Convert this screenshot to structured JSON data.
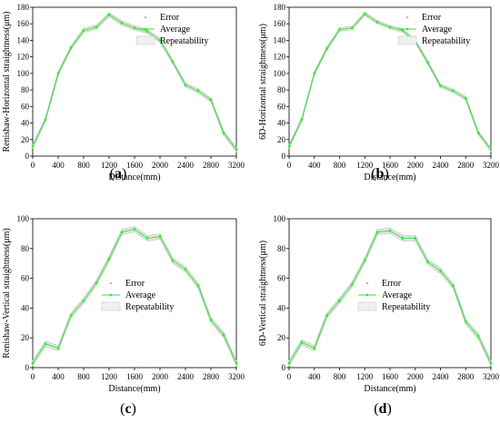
{
  "legend": {
    "error": "Error",
    "average": "Average",
    "repeatability": "Repeatability"
  },
  "colors": {
    "average": "#39e639",
    "band": "#cccccc",
    "error_marker": "#a8f0a8"
  },
  "chart_data": [
    {
      "type": "line",
      "panel": "(a)",
      "label_letter": "a",
      "xlabel": "Distance(mm)",
      "ylabel": "Renishaw-Horizontal straightness(μm)",
      "xlim": [
        0,
        3200
      ],
      "ylim": [
        0,
        180
      ],
      "xticks": [
        0,
        400,
        800,
        1200,
        1600,
        2000,
        2400,
        2800,
        3200
      ],
      "yticks": [
        0,
        20,
        40,
        60,
        80,
        100,
        120,
        140,
        160,
        180
      ],
      "x": [
        0,
        200,
        400,
        600,
        800,
        1000,
        1200,
        1400,
        1600,
        1800,
        2000,
        2200,
        2400,
        2600,
        2800,
        3000,
        3200
      ],
      "series": [
        {
          "name": "Average",
          "values": [
            12,
            44,
            100,
            131,
            152,
            156,
            171,
            161,
            155,
            151,
            140,
            114,
            86,
            79,
            68,
            28,
            8
          ]
        }
      ],
      "band_halfwidth": 2.5
    },
    {
      "type": "line",
      "panel": "(b)",
      "label_letter": "b",
      "xlabel": "Distance(mm)",
      "ylabel": "6D-Horizontal straightness(μm)",
      "xlim": [
        0,
        3200
      ],
      "ylim": [
        0,
        180
      ],
      "xticks": [
        0,
        400,
        800,
        1200,
        1600,
        2000,
        2400,
        2800,
        3200
      ],
      "yticks": [
        0,
        20,
        40,
        60,
        80,
        100,
        120,
        140,
        160,
        180
      ],
      "x": [
        0,
        200,
        400,
        600,
        800,
        1000,
        1200,
        1400,
        1600,
        1800,
        2000,
        2200,
        2400,
        2600,
        2800,
        3000,
        3200
      ],
      "series": [
        {
          "name": "Average",
          "values": [
            12,
            44,
            100,
            130,
            153,
            155,
            172,
            162,
            156,
            152,
            139,
            113,
            85,
            79,
            70,
            28,
            8
          ]
        }
      ],
      "band_halfwidth": 2.2
    },
    {
      "type": "line",
      "panel": "(c)",
      "label_letter": "c",
      "xlabel": "Distance(mm)",
      "ylabel": "Renishaw-Vertical straightness(μm)",
      "xlim": [
        0,
        3200
      ],
      "ylim": [
        0,
        100
      ],
      "xticks": [
        0,
        400,
        800,
        1200,
        1600,
        2000,
        2400,
        2800,
        3200
      ],
      "yticks": [
        0,
        20,
        40,
        60,
        80,
        100
      ],
      "x": [
        0,
        200,
        400,
        600,
        800,
        1000,
        1200,
        1400,
        1600,
        1800,
        2000,
        2200,
        2400,
        2600,
        2800,
        3000,
        3200
      ],
      "series": [
        {
          "name": "Average",
          "values": [
            3,
            16,
            13,
            35,
            45,
            57,
            73,
            91,
            93,
            87,
            88,
            72,
            66,
            55,
            32,
            22,
            3
          ]
        }
      ],
      "band_halfwidth": 1.8
    },
    {
      "type": "line",
      "panel": "(d)",
      "label_letter": "d",
      "xlabel": "Distance(mm)",
      "ylabel": "6D-Vertical straightness(μm)",
      "xlim": [
        0,
        3200
      ],
      "ylim": [
        0,
        100
      ],
      "xticks": [
        0,
        400,
        800,
        1200,
        1600,
        2000,
        2400,
        2800,
        3200
      ],
      "yticks": [
        0,
        20,
        40,
        60,
        80,
        100
      ],
      "x": [
        0,
        200,
        400,
        600,
        800,
        1000,
        1200,
        1400,
        1600,
        1800,
        2000,
        2200,
        2400,
        2600,
        2800,
        3000,
        3200
      ],
      "series": [
        {
          "name": "Average",
          "values": [
            3,
            17,
            13,
            35,
            45,
            56,
            72,
            91,
            92,
            87,
            87,
            71,
            65,
            55,
            31,
            21,
            3
          ]
        }
      ],
      "band_halfwidth": 1.8
    }
  ]
}
